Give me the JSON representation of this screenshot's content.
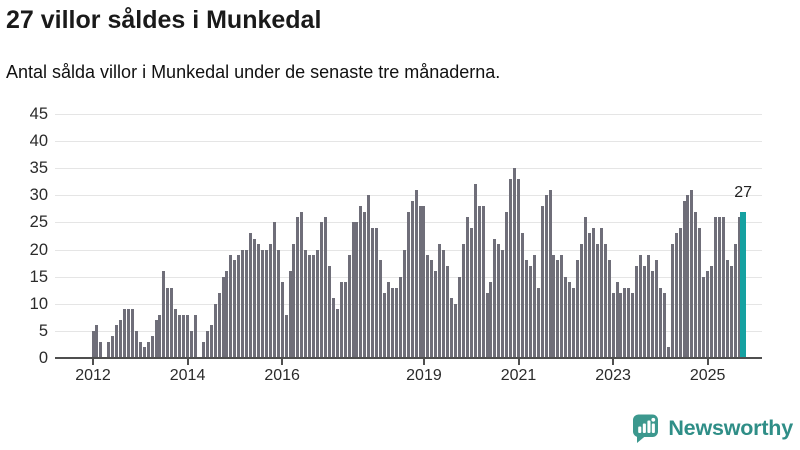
{
  "header": {
    "title": "27 villor såldes i Munkedal",
    "subtitle": "Antal sålda villor i Munkedal under de senaste tre månaderna."
  },
  "chart_data": {
    "type": "bar",
    "title": "27 villor såldes i Munkedal",
    "subtitle": "Antal sålda villor i Munkedal under de senaste tre månaderna.",
    "xlabel": "",
    "ylabel": "",
    "ylim": [
      0,
      45
    ],
    "yticks": [
      0,
      5,
      10,
      15,
      20,
      25,
      30,
      35,
      40,
      45
    ],
    "grid": "horizontal",
    "x_unit": "month",
    "values": [
      5,
      6,
      3,
      0,
      3,
      4,
      6,
      7,
      9,
      9,
      9,
      5,
      3,
      2,
      3,
      4,
      7,
      8,
      16,
      13,
      13,
      9,
      8,
      8,
      8,
      5,
      8,
      0,
      3,
      5,
      6,
      10,
      12,
      15,
      16,
      19,
      18,
      19,
      20,
      20,
      23,
      22,
      21,
      20,
      20,
      21,
      25,
      20,
      14,
      8,
      16,
      21,
      26,
      27,
      20,
      19,
      19,
      20,
      25,
      26,
      17,
      11,
      9,
      14,
      14,
      19,
      25,
      25,
      28,
      27,
      30,
      24,
      24,
      18,
      12,
      14,
      13,
      13,
      15,
      20,
      27,
      29,
      31,
      28,
      28,
      19,
      18,
      16,
      21,
      20,
      17,
      11,
      10,
      15,
      21,
      26,
      24,
      32,
      28,
      28,
      12,
      14,
      22,
      21,
      20,
      27,
      33,
      35,
      33,
      23,
      18,
      17,
      19,
      13,
      28,
      30,
      31,
      19,
      18,
      19,
      15,
      14,
      13,
      18,
      21,
      26,
      23,
      24,
      21,
      24,
      21,
      18,
      12,
      14,
      12,
      13,
      13,
      12,
      17,
      19,
      17,
      19,
      16,
      18,
      13,
      12,
      2,
      21,
      23,
      24,
      29,
      30,
      31,
      27,
      24,
      15,
      16,
      17,
      26,
      26,
      26,
      18,
      17,
      21,
      26,
      27
    ],
    "year_ticks": [
      {
        "label": "2012",
        "index": 0
      },
      {
        "label": "2014",
        "index": 24
      },
      {
        "label": "2016",
        "index": 48
      },
      {
        "label": "2019",
        "index": 84
      },
      {
        "label": "2021",
        "index": 108
      },
      {
        "label": "2023",
        "index": 132
      },
      {
        "label": "2025",
        "index": 156
      }
    ],
    "highlight_last_bar": true,
    "last_value_annotation": "27",
    "colors": {
      "bar": "#6f6e79",
      "highlight": "#15a1a1",
      "grid": "#e5e5e5",
      "axis": "#4f4f4f",
      "tick_text": "#2b2b2b",
      "annotation_text": "#222222"
    }
  },
  "footer": {
    "brand": "Newsworthy",
    "brand_color": "#2f8e87",
    "icon": "newsworthy-speech-bubble-barchart-icon"
  }
}
